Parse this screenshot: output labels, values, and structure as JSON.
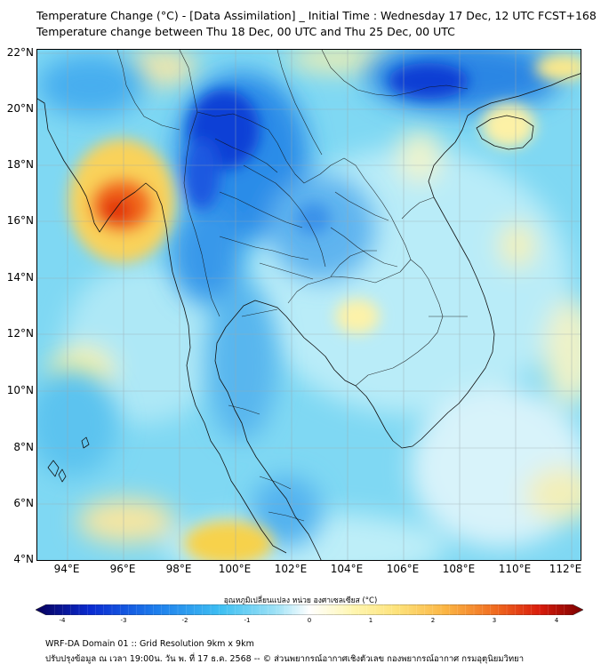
{
  "header": {
    "title_line1": "Temperature Change (°C) - [Data Assimilation] _ Initial Time : Wednesday 17 Dec, 12 UTC FCST+168",
    "title_line2": "Temperature change between Thu 18 Dec, 00 UTC and Thu 25 Dec, 00 UTC"
  },
  "map": {
    "lon_range": [
      93,
      112.5
    ],
    "lat_range": [
      4,
      22.2
    ],
    "x_ticks": [
      "94°E",
      "96°E",
      "98°E",
      "100°E",
      "102°E",
      "104°E",
      "106°E",
      "108°E",
      "110°E",
      "112°E"
    ],
    "y_ticks": [
      "22°N",
      "20°N",
      "18°N",
      "16°N",
      "14°N",
      "12°N",
      "10°N",
      "8°N",
      "6°N",
      "4°N"
    ],
    "features": [
      {
        "name": "warm anomaly off Myanmar coast",
        "lon": 95.5,
        "lat": 16.6,
        "value": 2.5
      },
      {
        "name": "cold anomaly northern Thailand",
        "lon": 99.5,
        "lat": 19.8,
        "value": -2.4
      },
      {
        "name": "cold anomaly northern Vietnam",
        "lon": 107.5,
        "lat": 21.2,
        "value": -2.5
      },
      {
        "name": "cold anomaly central Thailand west",
        "lon": 98.5,
        "lat": 16.2,
        "value": -1.9
      },
      {
        "name": "warm anomaly Hainan",
        "lon": 109.8,
        "lat": 19.5,
        "value": 0.8
      },
      {
        "name": "warm anomaly south Myanmar sea",
        "lon": 100,
        "lat": 4.5,
        "value": 1.2
      },
      {
        "name": "warm anomaly Cambodia",
        "lon": 104.5,
        "lat": 12.8,
        "value": 0.6
      }
    ]
  },
  "colorbar": {
    "label": "อุณหภูมิเปลี่ยนแปลง หน่วย องศาเซลเซียส (°C)",
    "range": [
      -4,
      4
    ],
    "ticks": [
      "-4",
      "-3",
      "-2",
      "-1",
      "0",
      "1",
      "2",
      "3",
      "4"
    ],
    "colors": [
      "#08005a",
      "#0a2bd1",
      "#1d7dec",
      "#3fc0f2",
      "#9fe2f6",
      "#ffffff",
      "#fff6b0",
      "#fde27a",
      "#fbb443",
      "#f06a1f",
      "#d91c0c",
      "#7a0000"
    ]
  },
  "footer": {
    "line1": "WRF-DA Domain 01 :: Grid Resolution 9km x 9km",
    "line2": "ปรับปรุงข้อมูล ณ เวลา 19:00น. วัน พ. ที่ 17 ธ.ค. 2568 -- © ส่วนพยากรณ์อากาศเชิงตัวเลข กองพยากรณ์อากาศ กรมอุตุนิยมวิทยา"
  }
}
